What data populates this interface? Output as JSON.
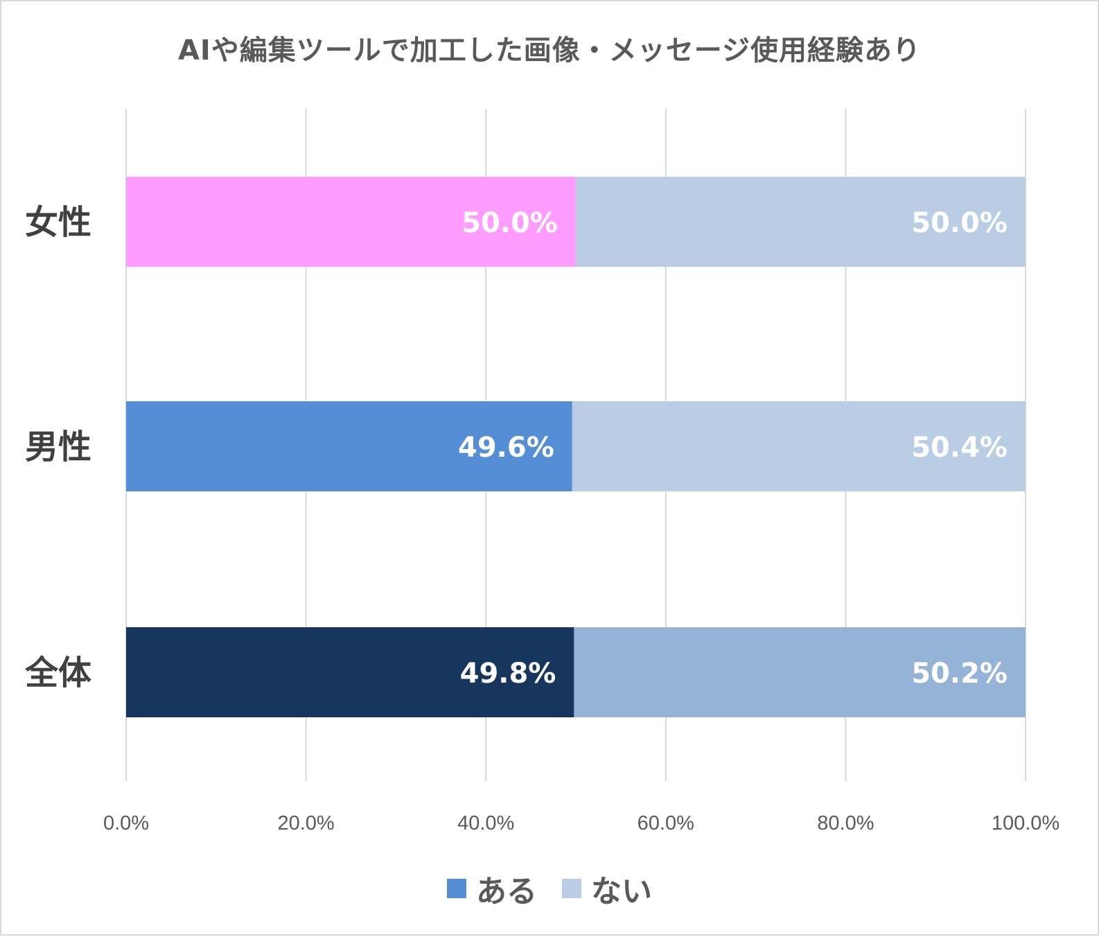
{
  "chart_data": {
    "type": "bar",
    "orientation": "horizontal",
    "stacked": true,
    "title": "AIや編集ツールで加工した画像・メッセージ使用経験あり",
    "categories": [
      "女性",
      "男性",
      "全体"
    ],
    "series": [
      {
        "name": "ある",
        "values": [
          50.0,
          49.6,
          49.8
        ],
        "labels": [
          "50.0%",
          "49.6%",
          "49.8%"
        ],
        "colors": [
          "#ff9cff",
          "#558ed5",
          "#17365d"
        ]
      },
      {
        "name": "ない",
        "values": [
          50.0,
          50.4,
          50.2
        ],
        "labels": [
          "50.0%",
          "50.4%",
          "50.2%"
        ],
        "colors": [
          "#b9cde5",
          "#b9cde5",
          "#95b3d7"
        ]
      }
    ],
    "xlim": [
      0,
      100
    ],
    "xticks": [
      0,
      20,
      40,
      60,
      80,
      100
    ],
    "xtick_labels": [
      "0.0%",
      "20.0%",
      "40.0%",
      "60.0%",
      "80.0%",
      "100.0%"
    ],
    "grid": true,
    "legend": {
      "placement": "bottom",
      "entries": [
        {
          "label": "ある",
          "color": "#558ed5"
        },
        {
          "label": "ない",
          "color": "#b9cde5"
        }
      ]
    }
  }
}
